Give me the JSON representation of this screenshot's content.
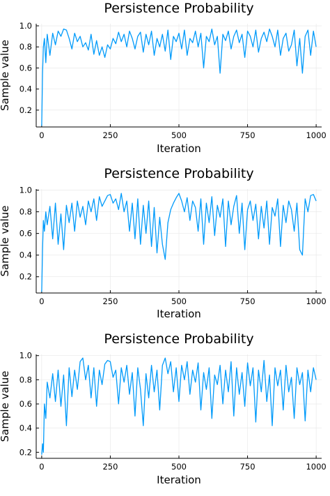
{
  "chart_data": [
    {
      "type": "line",
      "title": "Persistence Probability",
      "xlabel": "Iteration",
      "ylabel": "Sample value",
      "xlim": [
        -20,
        1020
      ],
      "ylim": [
        0.04,
        1.02
      ],
      "xticks": [
        0,
        250,
        500,
        750,
        1000
      ],
      "yticks": [
        0.2,
        0.4,
        0.6,
        0.8,
        1.0
      ],
      "xtick_labels": [
        "0",
        "250",
        "500",
        "750",
        "1000"
      ],
      "ytick_labels": [
        "0.2",
        "0.4",
        "0.6",
        "0.8",
        "1.0"
      ],
      "grid": true,
      "color": "#009AFA",
      "x": [
        0,
        3,
        6,
        10,
        15,
        20,
        30,
        40,
        50,
        60,
        70,
        80,
        90,
        100,
        110,
        120,
        130,
        140,
        150,
        160,
        170,
        180,
        190,
        200,
        210,
        220,
        230,
        240,
        250,
        260,
        270,
        280,
        290,
        300,
        310,
        320,
        330,
        340,
        350,
        360,
        370,
        380,
        390,
        400,
        410,
        420,
        430,
        440,
        450,
        460,
        470,
        480,
        490,
        500,
        510,
        520,
        530,
        540,
        550,
        560,
        570,
        580,
        590,
        600,
        610,
        620,
        630,
        640,
        650,
        660,
        670,
        680,
        690,
        700,
        710,
        720,
        730,
        740,
        750,
        760,
        770,
        780,
        790,
        800,
        810,
        820,
        830,
        840,
        850,
        860,
        870,
        880,
        890,
        900,
        910,
        920,
        930,
        940,
        950,
        960,
        970,
        980,
        990,
        1000
      ],
      "y": [
        0.05,
        0.55,
        0.8,
        0.88,
        0.65,
        0.92,
        0.72,
        0.93,
        0.82,
        0.95,
        0.9,
        0.97,
        0.96,
        0.88,
        0.78,
        0.93,
        0.85,
        0.9,
        0.8,
        0.84,
        0.77,
        0.92,
        0.73,
        0.86,
        0.72,
        0.8,
        0.7,
        0.82,
        0.78,
        0.88,
        0.83,
        0.94,
        0.85,
        0.92,
        0.8,
        0.95,
        0.88,
        0.78,
        0.9,
        0.94,
        0.75,
        0.92,
        0.82,
        0.95,
        0.72,
        0.88,
        0.8,
        0.92,
        0.76,
        0.96,
        0.68,
        0.9,
        0.85,
        0.93,
        0.78,
        0.96,
        0.72,
        0.88,
        0.84,
        0.95,
        0.8,
        0.93,
        0.6,
        0.9,
        0.85,
        0.97,
        0.82,
        0.9,
        0.55,
        0.92,
        0.86,
        0.95,
        0.78,
        0.9,
        0.96,
        0.84,
        0.92,
        0.7,
        0.95,
        0.9,
        0.8,
        0.96,
        0.75,
        0.88,
        0.94,
        0.85,
        0.97,
        0.9,
        0.8,
        0.96,
        0.72,
        0.88,
        0.93,
        0.76,
        0.82,
        0.96,
        0.62,
        0.88,
        0.55,
        0.9,
        0.96,
        0.72,
        0.95,
        0.8
      ]
    },
    {
      "type": "line",
      "title": "Persistence Probability",
      "xlabel": "Iteration",
      "ylabel": "Sample value",
      "xlim": [
        -20,
        1020
      ],
      "ylim": [
        0.05,
        1.01
      ],
      "xticks": [
        0,
        250,
        500,
        750,
        1000
      ],
      "yticks": [
        0.2,
        0.4,
        0.6,
        0.8,
        1.0
      ],
      "xtick_labels": [
        "0",
        "250",
        "500",
        "750",
        "1000"
      ],
      "ytick_labels": [
        "0.2",
        "0.4",
        "0.6",
        "0.8",
        "1.0"
      ],
      "grid": true,
      "color": "#009AFA",
      "x": [
        0,
        3,
        6,
        10,
        15,
        20,
        30,
        40,
        50,
        60,
        70,
        80,
        90,
        100,
        110,
        120,
        130,
        140,
        150,
        160,
        170,
        180,
        190,
        200,
        210,
        220,
        230,
        240,
        250,
        260,
        270,
        280,
        290,
        300,
        310,
        320,
        330,
        340,
        350,
        360,
        370,
        380,
        390,
        400,
        410,
        420,
        430,
        440,
        450,
        460,
        470,
        480,
        490,
        500,
        510,
        520,
        530,
        540,
        550,
        560,
        570,
        580,
        590,
        600,
        610,
        620,
        630,
        640,
        650,
        660,
        670,
        680,
        690,
        700,
        710,
        720,
        730,
        740,
        750,
        760,
        770,
        780,
        790,
        800,
        810,
        820,
        830,
        840,
        850,
        860,
        870,
        880,
        890,
        900,
        910,
        920,
        930,
        940,
        950,
        960,
        970,
        980,
        990,
        1000
      ],
      "y": [
        0.06,
        0.45,
        0.72,
        0.62,
        0.8,
        0.68,
        0.85,
        0.55,
        0.88,
        0.5,
        0.78,
        0.45,
        0.86,
        0.7,
        0.88,
        0.62,
        0.9,
        0.75,
        0.85,
        0.68,
        0.9,
        0.8,
        0.92,
        0.72,
        0.94,
        0.85,
        0.9,
        0.95,
        0.96,
        0.88,
        0.92,
        0.82,
        0.97,
        0.8,
        0.9,
        0.62,
        0.88,
        0.55,
        0.92,
        0.5,
        0.86,
        0.6,
        0.9,
        0.48,
        0.84,
        0.42,
        0.75,
        0.5,
        0.36,
        0.7,
        0.82,
        0.88,
        0.93,
        0.97,
        0.9,
        0.8,
        0.93,
        0.72,
        0.9,
        0.84,
        0.62,
        0.92,
        0.5,
        0.88,
        0.7,
        0.94,
        0.58,
        0.86,
        0.75,
        0.92,
        0.48,
        0.9,
        0.68,
        0.85,
        0.95,
        0.6,
        0.88,
        0.45,
        0.82,
        0.9,
        0.72,
        0.87,
        0.55,
        0.85,
        0.65,
        0.9,
        0.5,
        0.84,
        0.76,
        0.92,
        0.48,
        0.86,
        0.7,
        0.9,
        0.82,
        0.62,
        0.88,
        0.45,
        0.4,
        0.92,
        0.8,
        0.95,
        0.96,
        0.9
      ]
    },
    {
      "type": "line",
      "title": "Persistence Probability",
      "xlabel": "Iteration",
      "ylabel": "Sample value",
      "xlim": [
        -20,
        1020
      ],
      "ylim": [
        0.15,
        1.01
      ],
      "xticks": [
        0,
        250,
        500,
        750,
        1000
      ],
      "yticks": [
        0.2,
        0.4,
        0.6,
        0.8,
        1.0
      ],
      "xtick_labels": [
        "0",
        "250",
        "500",
        "750",
        "1000"
      ],
      "ytick_labels": [
        "0.2",
        "0.4",
        "0.6",
        "0.8",
        "1.0"
      ],
      "grid": true,
      "color": "#009AFA",
      "x": [
        0,
        3,
        6,
        10,
        15,
        20,
        30,
        40,
        50,
        60,
        70,
        80,
        90,
        100,
        110,
        120,
        130,
        140,
        150,
        160,
        170,
        180,
        190,
        200,
        210,
        220,
        230,
        240,
        250,
        260,
        270,
        280,
        290,
        300,
        310,
        320,
        330,
        340,
        350,
        360,
        370,
        380,
        390,
        400,
        410,
        420,
        430,
        440,
        450,
        460,
        470,
        480,
        490,
        500,
        510,
        520,
        530,
        540,
        550,
        560,
        570,
        580,
        590,
        600,
        610,
        620,
        630,
        640,
        650,
        660,
        670,
        680,
        690,
        700,
        710,
        720,
        730,
        740,
        750,
        760,
        770,
        780,
        790,
        800,
        810,
        820,
        830,
        840,
        850,
        860,
        870,
        880,
        890,
        900,
        910,
        920,
        930,
        940,
        950,
        960,
        970,
        980,
        990,
        1000
      ],
      "y": [
        0.18,
        0.27,
        0.2,
        0.6,
        0.48,
        0.78,
        0.65,
        0.85,
        0.62,
        0.88,
        0.58,
        0.84,
        0.42,
        0.9,
        0.66,
        0.88,
        0.72,
        0.95,
        0.98,
        0.8,
        0.92,
        0.65,
        0.9,
        0.58,
        0.88,
        0.76,
        0.93,
        0.96,
        0.95,
        0.82,
        0.88,
        0.6,
        0.9,
        0.78,
        0.92,
        0.68,
        0.86,
        0.5,
        0.9,
        0.72,
        0.42,
        0.85,
        0.65,
        0.92,
        0.7,
        0.88,
        0.55,
        0.92,
        0.98,
        0.85,
        0.95,
        0.7,
        0.9,
        0.62,
        0.92,
        0.8,
        0.95,
        0.68,
        0.88,
        0.78,
        0.94,
        0.55,
        0.86,
        0.72,
        0.9,
        0.48,
        0.84,
        0.76,
        0.92,
        0.6,
        0.88,
        0.7,
        0.95,
        0.5,
        0.9,
        0.68,
        0.86,
        0.58,
        0.94,
        0.75,
        0.9,
        0.45,
        0.88,
        0.7,
        0.96,
        0.62,
        0.84,
        0.42,
        0.9,
        0.75,
        0.88,
        0.55,
        0.92,
        0.7,
        0.82,
        0.48,
        0.9,
        0.76,
        0.86,
        0.46,
        0.88,
        0.7,
        0.9,
        0.8
      ]
    }
  ]
}
